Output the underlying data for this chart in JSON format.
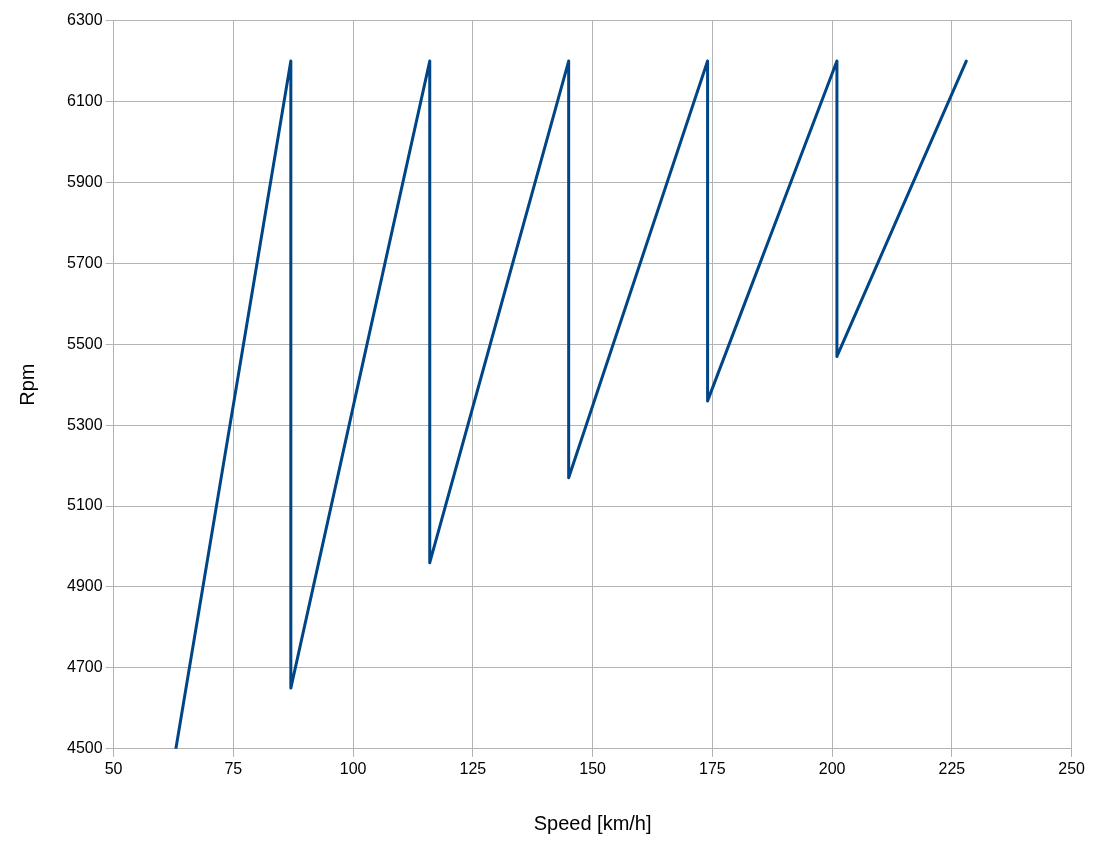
{
  "chart_data": {
    "type": "line",
    "xlabel": "Speed [km/h]",
    "ylabel": "Rpm",
    "x": [
      63,
      87,
      87,
      116,
      116,
      145,
      145,
      174,
      174,
      201,
      201,
      228
    ],
    "series": [
      {
        "color": "#004586",
        "values": [
          4500,
          6200,
          4650,
          6200,
          4960,
          6200,
          5170,
          6200,
          5360,
          6200,
          5470,
          6200
        ]
      }
    ],
    "xlim": [
      50,
      250
    ],
    "xticks": [
      50,
      75,
      100,
      125,
      150,
      175,
      200,
      225,
      250
    ],
    "ylim": [
      4500,
      6300
    ],
    "yticks": [
      4500,
      4700,
      4900,
      5100,
      5300,
      5500,
      5700,
      5900,
      6100,
      6300
    ],
    "grid": true,
    "legend": false,
    "marker": "none",
    "line_style": "solid"
  }
}
